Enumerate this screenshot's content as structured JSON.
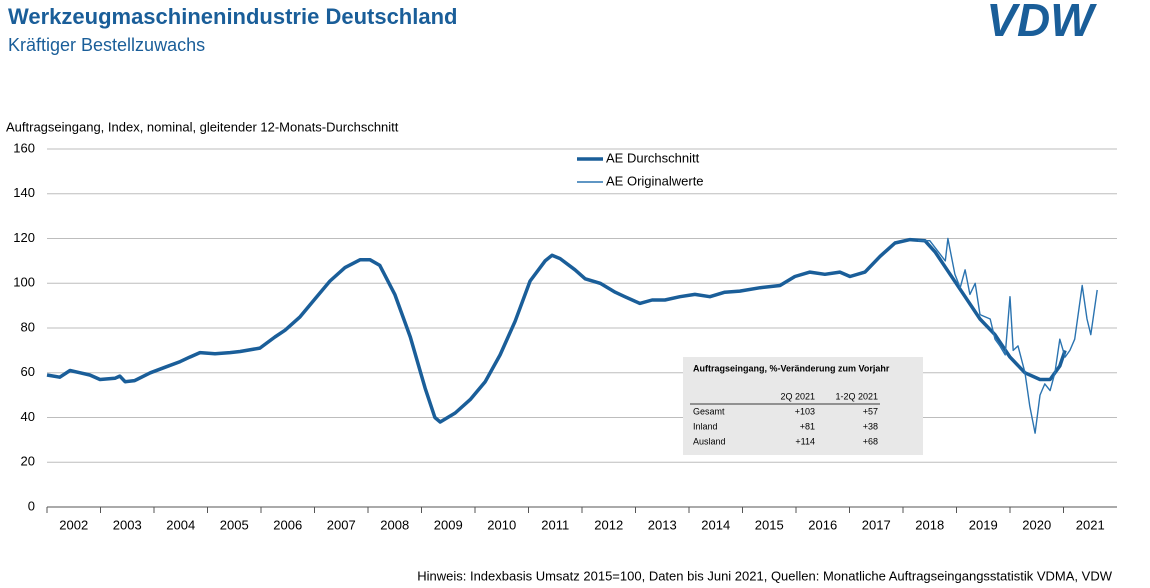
{
  "header": {
    "title": "Werkzeugmaschinenindustrie Deutschland",
    "subtitle": "Kräftiger Bestellzuwachs",
    "logo": "VDW"
  },
  "chart_data": {
    "type": "line",
    "y_label": "Auftragseingang, Index, nominal, gleitender 12-Monats-Durchschnitt",
    "xlim": [
      2002,
      2022
    ],
    "xticks": [
      {
        "value": 2002.5,
        "label": "2002"
      },
      {
        "value": 2003.5,
        "label": "2003"
      },
      {
        "value": 2004.5,
        "label": "2004"
      },
      {
        "value": 2005.5,
        "label": "2005"
      },
      {
        "value": 2006.5,
        "label": "2006"
      },
      {
        "value": 2007.5,
        "label": "2007"
      },
      {
        "value": 2008.5,
        "label": "2008"
      },
      {
        "value": 2009.5,
        "label": "2009"
      },
      {
        "value": 2010.5,
        "label": "2010"
      },
      {
        "value": 2011.5,
        "label": "2011"
      },
      {
        "value": 2012.5,
        "label": "2012"
      },
      {
        "value": 2013.5,
        "label": "2013"
      },
      {
        "value": 2014.5,
        "label": "2014"
      },
      {
        "value": 2015.5,
        "label": "2015"
      },
      {
        "value": 2016.5,
        "label": "2016"
      },
      {
        "value": 2017.5,
        "label": "2017"
      },
      {
        "value": 2018.5,
        "label": "2018"
      },
      {
        "value": 2019.5,
        "label": "2019"
      },
      {
        "value": 2020.5,
        "label": "2020"
      },
      {
        "value": 2021.5,
        "label": "2021"
      }
    ],
    "ylim": [
      0,
      160
    ],
    "yticks": [
      0,
      20,
      40,
      60,
      80,
      100,
      120,
      140,
      160
    ],
    "grid": true,
    "legend": "top",
    "series": [
      {
        "name": "AE Durchschnitt",
        "color": "#1a5e99",
        "width": 3.5,
        "x": [
          2002.0,
          2002.24,
          2002.43,
          2002.62,
          2002.8,
          2002.99,
          2003.27,
          2003.36,
          2003.46,
          2003.64,
          2003.93,
          2004.21,
          2004.49,
          2004.67,
          2004.86,
          2005.14,
          2005.42,
          2005.61,
          2005.98,
          2006.26,
          2006.45,
          2006.73,
          2007.01,
          2007.29,
          2007.57,
          2007.85,
          2008.04,
          2008.22,
          2008.5,
          2008.79,
          2009.07,
          2009.25,
          2009.35,
          2009.63,
          2009.91,
          2010.19,
          2010.47,
          2010.75,
          2011.03,
          2011.31,
          2011.44,
          2011.59,
          2011.87,
          2012.06,
          2012.34,
          2012.62,
          2012.8,
          2013.08,
          2013.31,
          2013.55,
          2013.83,
          2014.11,
          2014.39,
          2014.67,
          2014.95,
          2015.33,
          2015.7,
          2015.98,
          2016.26,
          2016.54,
          2016.82,
          2017.01,
          2017.29,
          2017.57,
          2017.85,
          2018.13,
          2018.41,
          2018.6,
          2018.88,
          2019.16,
          2019.44,
          2019.72,
          2020.0,
          2020.28,
          2020.56,
          2020.75,
          2020.93,
          2021.03
        ],
        "values": [
          59,
          58,
          61,
          60,
          59,
          57,
          57.5,
          58.5,
          56,
          56.5,
          60,
          62.5,
          65,
          67,
          69,
          68.5,
          69,
          69.5,
          71,
          76,
          79,
          85,
          93,
          101,
          107,
          110.5,
          110.5,
          108,
          95,
          76,
          53,
          40,
          38,
          42,
          48,
          56,
          68,
          83,
          101,
          110,
          112.5,
          111,
          106,
          102,
          100,
          96,
          94,
          91,
          92.5,
          92.5,
          94,
          95,
          94,
          96,
          96.5,
          98,
          99,
          103,
          105,
          104,
          105,
          103,
          105,
          112,
          118,
          119.5,
          119,
          114,
          104,
          94,
          84,
          77,
          67,
          60,
          57,
          57,
          63,
          70
        ]
      },
      {
        "name": "AE Originalwerte",
        "color": "#2a73b0",
        "width": 1.4,
        "x": [
          2018.28,
          2018.5,
          2018.79,
          2018.84,
          2018.97,
          2019.07,
          2019.16,
          2019.25,
          2019.35,
          2019.44,
          2019.63,
          2019.72,
          2019.81,
          2019.91,
          2020.0,
          2020.06,
          2020.15,
          2020.28,
          2020.37,
          2020.47,
          2020.56,
          2020.65,
          2020.75,
          2020.84,
          2020.93,
          2021.03,
          2021.12,
          2021.21,
          2021.35,
          2021.44,
          2021.51,
          2021.63
        ],
        "values": [
          119,
          119,
          110,
          120,
          104,
          98,
          106,
          95,
          100,
          86,
          84,
          75,
          72,
          68,
          94,
          70,
          72,
          60,
          45,
          33,
          50,
          55,
          52,
          60,
          75,
          67,
          70,
          75,
          99,
          84,
          77,
          97
        ]
      }
    ],
    "table": {
      "title": "Auftragseingang, %-Veränderung zum Vorjahr",
      "columns": [
        "2Q 2021",
        "1-2Q 2021"
      ],
      "rows": [
        [
          "Gesamt",
          "+103",
          "+57"
        ],
        [
          "Inland",
          "+81",
          "+38"
        ],
        [
          "Ausland",
          "+114",
          "+68"
        ]
      ]
    }
  },
  "footnote": "Hinweis: Indexbasis Umsatz 2015=100, Daten bis Juni 2021, Quellen: Monatliche Auftragseingangsstatistik VDMA, VDW"
}
